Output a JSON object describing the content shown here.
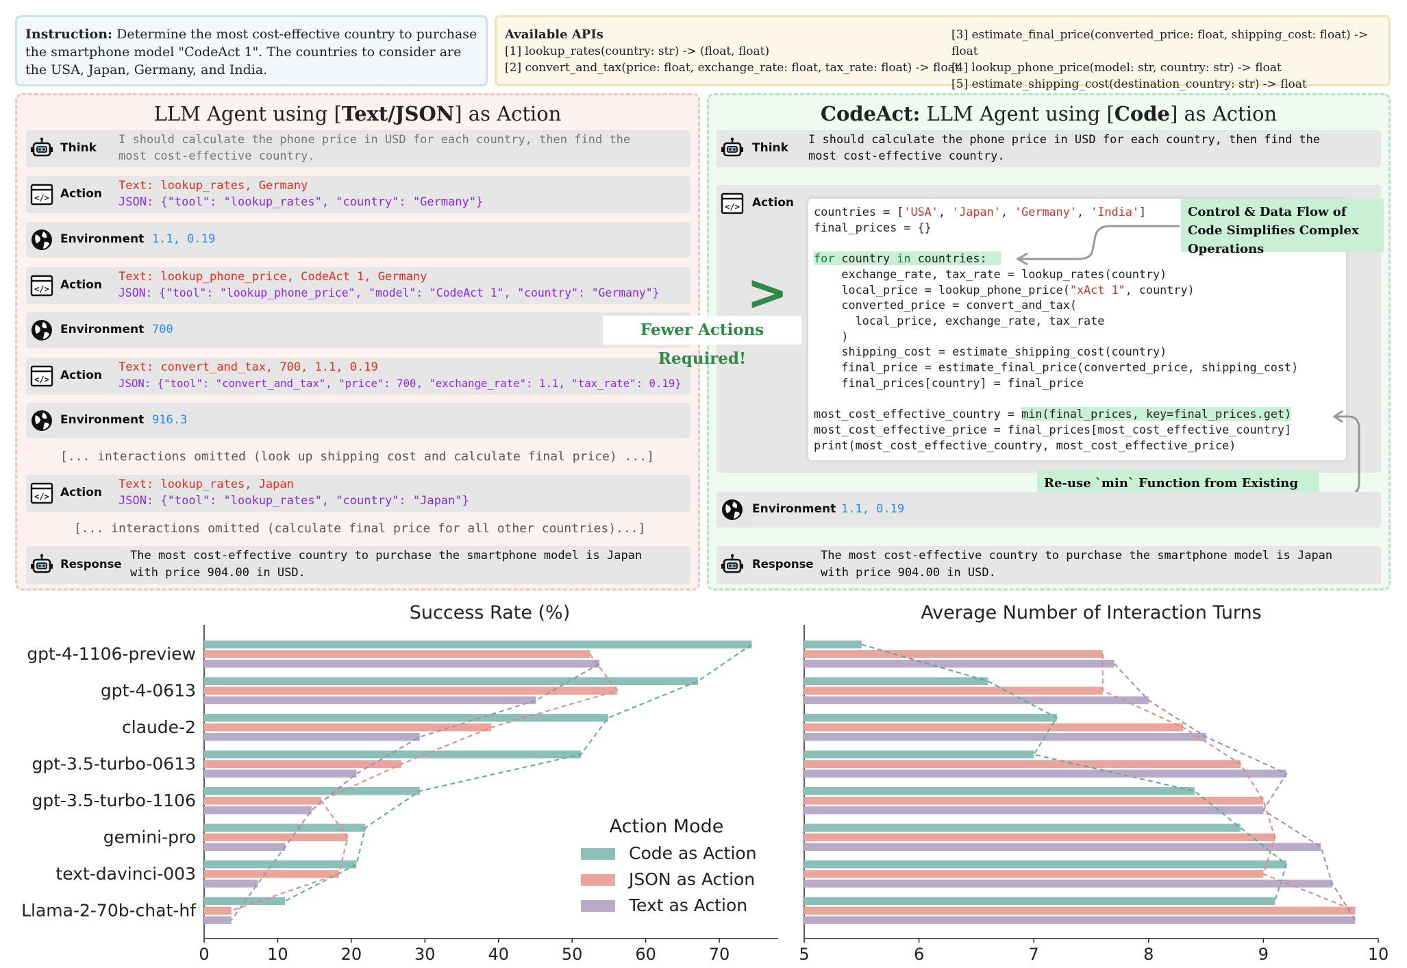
{
  "instruction": {
    "label": "Instruction:",
    "text": "Determine the most cost-effective country to purchase the smartphone model \"CodeAct 1\". The countries to consider are the USA, Japan, Germany, and India."
  },
  "apis": {
    "title": "Available APIs",
    "items": [
      "[1] lookup_rates(country: str) -> (float, float)",
      "[2] convert_and_tax(price: float, exchange_rate: float, tax_rate: float) -> float",
      "[3] estimate_final_price(converted_price: float, shipping_cost: float) -> float",
      "[4] lookup_phone_price(model: str, country: str) -> float",
      "[5] estimate_shipping_cost(destination_country: str) -> float"
    ]
  },
  "left_panel": {
    "title_pre": "LLM Agent using [",
    "title_bold": "Text/JSON",
    "title_post": "] as Action",
    "think_label": "Think",
    "think_line1": "I should calculate the phone price in USD for each country, then find the",
    "think_line2": "most cost-effective country.",
    "steps": [
      {
        "label": "Action",
        "text": "Text: lookup_rates, Germany",
        "json": "JSON: {\"tool\": \"lookup_rates\", \"country\": \"Germany\"}"
      },
      {
        "label": "Environment",
        "value": "1.1, 0.19"
      },
      {
        "label": "Action",
        "text": "Text: lookup_phone_price, CodeAct 1, Germany",
        "json": "JSON: {\"tool\": \"lookup_phone_price\", \"model\": \"CodeAct 1\", \"country\": \"Germany\"}"
      },
      {
        "label": "Environment",
        "value": "700"
      },
      {
        "label": "Action",
        "text": "Text: convert_and_tax, 700, 1.1, 0.19",
        "json": "JSON: {\"tool\": \"convert_and_tax\", \"price\": 700, \"exchange_rate\": 1.1, \"tax_rate\": 0.19}"
      },
      {
        "label": "Environment",
        "value": "916.3"
      },
      {
        "label": "Action",
        "text": "Text: lookup_rates, Japan",
        "json": "JSON: {\"tool\": \"lookup_rates\", \"country\": \"Japan\"}"
      }
    ],
    "omitted1": "[... interactions omitted (look up shipping cost and calculate final price) ...]",
    "omitted2": "[... interactions omitted (calculate final price for all other countries)...]",
    "response_label": "Response",
    "response_line1": "The most cost-effective country to purchase the smartphone model is Japan",
    "response_line2": "with price 904.00 in USD."
  },
  "right_panel": {
    "title_bold": "CodeAct:",
    "title_mid": " LLM Agent using [",
    "title_bold2": "Code",
    "title_post": "] as Action",
    "think_label": "Think",
    "think_line1": "I should calculate the phone price in USD for each country, then find the",
    "think_line2": "most cost-effective country.",
    "action_label": "Action",
    "env_label": "Environment",
    "env_value": "1.1, 0.19",
    "response_label": "Response",
    "response_line1": "The most cost-effective country to purchase the smartphone model is Japan",
    "response_line2": "with price 904.00 in USD.",
    "callout_flow": "Control & Data Flow of Code Simplifies Complex Operations",
    "callout_reuse": "Re-use `min` Function from Existing Software Infrastructures (Python library)",
    "fewer": "Fewer Actions Required!",
    "gt": ">"
  },
  "chart_data": [
    {
      "type": "bar",
      "title": "Success Rate (%)",
      "orientation": "horizontal",
      "categories": [
        "gpt-4-1106-preview",
        "gpt-4-0613",
        "claude-2",
        "gpt-3.5-turbo-0613",
        "gpt-3.5-turbo-1106",
        "gemini-pro",
        "text-davinci-003",
        "Llama-2-70b-chat-hf"
      ],
      "xlim": [
        0,
        78
      ],
      "xticks": [
        0,
        10,
        20,
        30,
        40,
        50,
        60,
        70
      ],
      "series": [
        {
          "name": "Code as Action",
          "color": "#8cbfb7",
          "values": [
            74.4,
            67.1,
            54.9,
            51.2,
            29.3,
            21.9,
            20.7,
            11.0
          ]
        },
        {
          "name": "JSON as Action",
          "color": "#e8a69c",
          "values": [
            52.4,
            56.1,
            39.0,
            26.8,
            15.9,
            19.5,
            18.3,
            3.7
          ]
        },
        {
          "name": "Text as Action",
          "color": "#b7abc7",
          "values": [
            53.7,
            45.1,
            29.3,
            20.7,
            14.6,
            11.0,
            7.3,
            3.7
          ]
        }
      ],
      "legend_title": "Action Mode",
      "legend_position": "lower-right"
    },
    {
      "type": "bar",
      "title": "Average Number of Interaction Turns",
      "orientation": "horizontal",
      "categories": [
        "gpt-4-1106-preview",
        "gpt-4-0613",
        "claude-2",
        "gpt-3.5-turbo-0613",
        "gpt-3.5-turbo-1106",
        "gemini-pro",
        "text-davinci-003",
        "Llama-2-70b-chat-hf"
      ],
      "xlim": [
        5,
        10
      ],
      "xticks": [
        5,
        6,
        7,
        8,
        9,
        10
      ],
      "series": [
        {
          "name": "Code as Action",
          "color": "#8cbfb7",
          "values": [
            5.5,
            6.6,
            7.2,
            7.0,
            8.4,
            8.8,
            9.2,
            9.1
          ]
        },
        {
          "name": "JSON as Action",
          "color": "#e8a69c",
          "values": [
            7.6,
            7.6,
            8.3,
            8.8,
            9.0,
            9.1,
            9.0,
            9.8
          ]
        },
        {
          "name": "Text as Action",
          "color": "#b7abc7",
          "values": [
            7.7,
            8.0,
            8.5,
            9.2,
            9.0,
            9.5,
            9.6,
            9.8
          ]
        }
      ]
    }
  ]
}
